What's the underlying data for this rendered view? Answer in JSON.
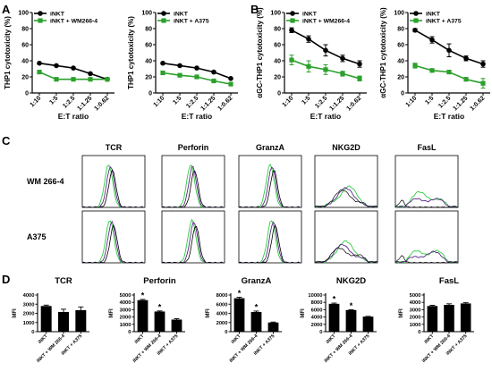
{
  "colors": {
    "iNKT": "#000000",
    "treated": "#2ca02c",
    "hist_green": "#2ecc40",
    "hist_purple": "#5b2a86",
    "hist_black": "#000000"
  },
  "chart_data": [
    {
      "panel": "A",
      "type": "line",
      "xlabel": "E:T ratio",
      "ylabel": "THP1 cytotoxicity (%)",
      "categories": [
        "1:10",
        "1:5",
        "1:2.5",
        "1:1.25",
        "1:0.62"
      ],
      "ylim": [
        0,
        100
      ],
      "yticks": [
        0,
        20,
        40,
        60,
        80,
        100
      ],
      "legend_position": "top-left",
      "series": [
        {
          "name": "iNKT",
          "color": "#000000",
          "marker": "circle",
          "values": [
            37,
            34,
            31,
            24,
            17
          ]
        },
        {
          "name": "iNKT + WM266-4",
          "color": "#2ca02c",
          "marker": "square",
          "values": [
            26,
            17,
            17,
            17,
            17
          ]
        }
      ]
    },
    {
      "panel": "A",
      "type": "line",
      "xlabel": "E:T ratio",
      "ylabel": "THP1 cytotoxicity (%)",
      "categories": [
        "1:10",
        "1:5",
        "1:2.5",
        "1:1.25",
        "1:0.62"
      ],
      "ylim": [
        0,
        100
      ],
      "yticks": [
        0,
        20,
        40,
        60,
        80,
        100
      ],
      "legend_position": "top-left",
      "series": [
        {
          "name": "iNKT",
          "color": "#000000",
          "marker": "circle",
          "values": [
            37,
            34,
            31,
            26,
            18
          ]
        },
        {
          "name": "iNKT + A375",
          "color": "#2ca02c",
          "marker": "square",
          "values": [
            25,
            22,
            20,
            15,
            11
          ]
        }
      ]
    },
    {
      "panel": "B",
      "type": "line",
      "xlabel": "E:T ratio",
      "ylabel": "αGC-THP1 cytotoxicity (%)",
      "categories": [
        "1:10",
        "1:5",
        "1:2.5",
        "1:1.25",
        "1:0.62"
      ],
      "ylim": [
        0,
        100
      ],
      "yticks": [
        0,
        20,
        40,
        60,
        80,
        100
      ],
      "legend_position": "top-left",
      "series": [
        {
          "name": "iNKT",
          "color": "#000000",
          "marker": "circle",
          "values": [
            78,
            67,
            53,
            43,
            36
          ],
          "errors": [
            3,
            4,
            7,
            4,
            4
          ]
        },
        {
          "name": "iNKT + WM266-4",
          "color": "#2ca02c",
          "marker": "square",
          "values": [
            41,
            33,
            29,
            24,
            18
          ],
          "errors": [
            6,
            7,
            6,
            3,
            3
          ]
        }
      ]
    },
    {
      "panel": "B",
      "type": "line",
      "xlabel": "E:T ratio",
      "ylabel": "αGC-THP1 cytotoxicity (%)",
      "categories": [
        "1:10",
        "1:5",
        "1:2.5",
        "1:1.25",
        "1:0.62"
      ],
      "ylim": [
        0,
        100
      ],
      "yticks": [
        0,
        20,
        40,
        60,
        80,
        100
      ],
      "legend_position": "top-left",
      "series": [
        {
          "name": "iNKT",
          "color": "#000000",
          "marker": "circle",
          "values": [
            78,
            66,
            53,
            43,
            36
          ],
          "errors": [
            2,
            4,
            8,
            3,
            4
          ]
        },
        {
          "name": "iNKT + A375",
          "color": "#2ca02c",
          "marker": "square",
          "values": [
            34,
            28,
            26,
            17,
            12
          ],
          "errors": [
            3,
            2,
            2,
            2,
            6
          ]
        }
      ]
    },
    {
      "panel": "C",
      "type": "histogram-grid",
      "columns": [
        "TCR",
        "Perforin",
        "GranzA",
        "NKG2D",
        "FasL"
      ],
      "rows": [
        "WM 266-4",
        "A375"
      ]
    },
    {
      "panel": "D",
      "type": "bar",
      "title": "TCR",
      "ylabel": "MFI",
      "categories": [
        "iNKT",
        "iNKT + WM 266-4",
        "iNKT + A375"
      ],
      "values": [
        2800,
        2150,
        2350
      ],
      "errors": [
        100,
        300,
        350
      ],
      "significant": [
        false,
        false,
        false
      ],
      "ylim": [
        0,
        4000
      ],
      "yticks": [
        0,
        1000,
        2000,
        3000,
        4000
      ]
    },
    {
      "panel": "D",
      "type": "bar",
      "title": "Perforin",
      "ylabel": "MFI",
      "categories": [
        "iNKT",
        "iNKT + WM 266-4",
        "iNKT + A375"
      ],
      "values": [
        4300,
        2750,
        1650
      ],
      "errors": [
        100,
        80,
        120
      ],
      "significant": [
        true,
        true,
        false
      ],
      "ylim": [
        0,
        5000
      ],
      "yticks": [
        0,
        1000,
        2000,
        3000,
        4000,
        5000
      ]
    },
    {
      "panel": "D",
      "type": "bar",
      "title": "GranzA",
      "ylabel": "MFI",
      "categories": [
        "iNKT",
        "iNKT + WM 266-4",
        "iNKT + A375"
      ],
      "values": [
        7300,
        4300,
        2000
      ],
      "errors": [
        200,
        200,
        100
      ],
      "significant": [
        true,
        true,
        false
      ],
      "ylim": [
        0,
        8000
      ],
      "yticks": [
        0,
        2000,
        4000,
        6000,
        8000
      ]
    },
    {
      "panel": "D",
      "type": "bar",
      "title": "NKG2D",
      "ylabel": "MFI",
      "categories": [
        "iNKT",
        "iNKT + WM 266-4",
        "iNKT + A375"
      ],
      "values": [
        7600,
        5900,
        4100
      ],
      "errors": [
        200,
        100,
        80
      ],
      "significant": [
        true,
        true,
        false
      ],
      "ylim": [
        0,
        10000
      ],
      "yticks": [
        0,
        2000,
        4000,
        6000,
        8000,
        10000
      ]
    },
    {
      "panel": "D",
      "type": "bar",
      "title": "FasL",
      "ylabel": "MFI",
      "categories": [
        "iNKT",
        "iNKT + WM 266-4",
        "iNKT + A375"
      ],
      "values": [
        3500,
        3650,
        3850
      ],
      "errors": [
        100,
        150,
        100
      ],
      "significant": [
        false,
        false,
        false
      ],
      "ylim": [
        0,
        5000
      ],
      "yticks": [
        0,
        1000,
        2000,
        3000,
        4000,
        5000
      ]
    }
  ],
  "panel_letters": [
    "A",
    "B",
    "C",
    "D"
  ],
  "significance_marker": "*"
}
